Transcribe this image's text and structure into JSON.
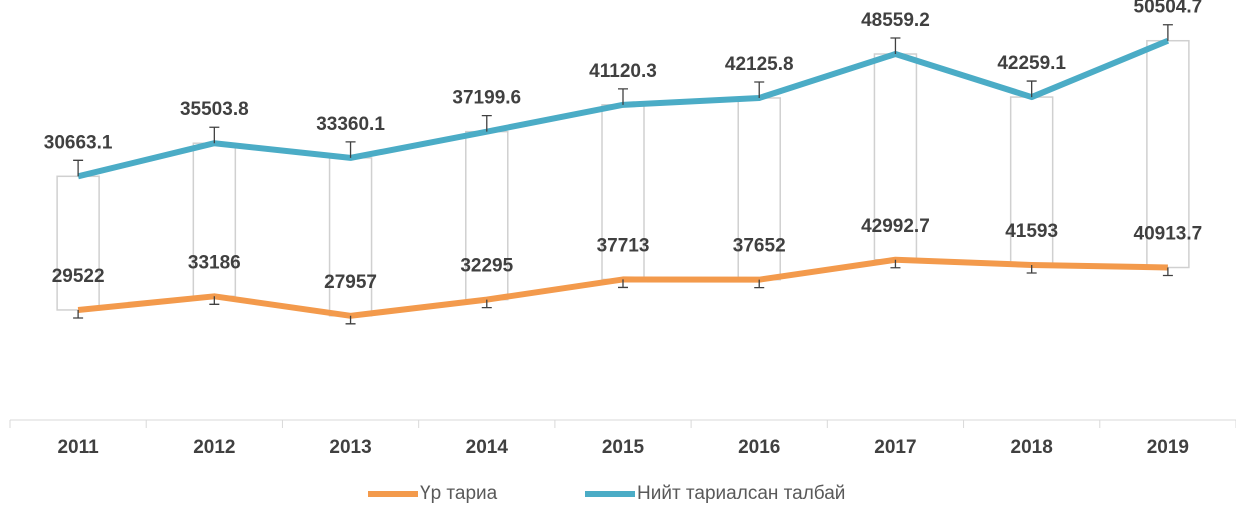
{
  "chart_data": {
    "type": "line",
    "categories": [
      "2011",
      "2012",
      "2013",
      "2014",
      "2015",
      "2016",
      "2017",
      "2018",
      "2019"
    ],
    "series": [
      {
        "name": "Үр тариа",
        "color": "#f39a4c",
        "axis": "y2",
        "values": [
          29522,
          33186,
          27957,
          32295,
          37713,
          37652,
          42992.7,
          41593,
          40913.7
        ]
      },
      {
        "name": "Нийт тариалсан талбай",
        "color": "#4bacc6",
        "values": [
          30663.1,
          35503.8,
          33360.1,
          37199.6,
          41120.3,
          42125.8,
          48559.2,
          42259.1,
          50504.7
        ]
      }
    ],
    "ylim": [
      -5000,
      55000
    ],
    "y2lim": [
      0,
      110000
    ],
    "legend": "bottom"
  }
}
